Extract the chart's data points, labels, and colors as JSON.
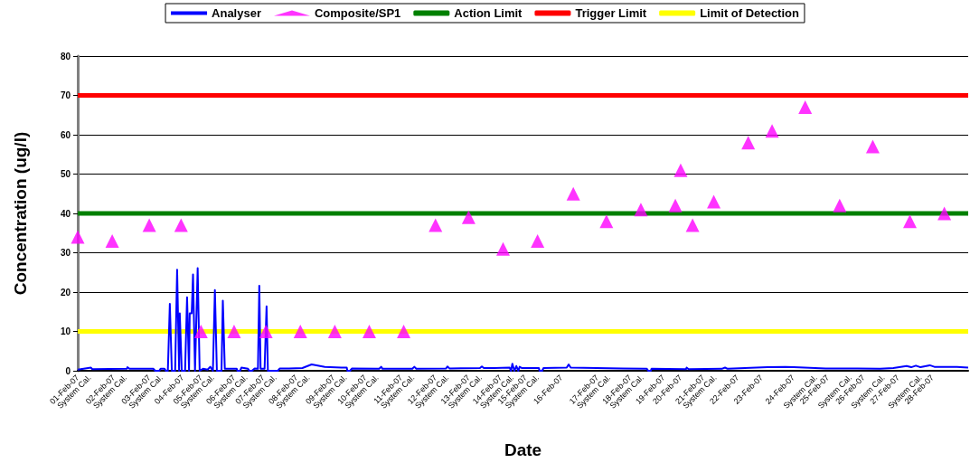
{
  "chart_data": {
    "type": "line",
    "xlabel": "Date",
    "ylabel": "Concentration (ug/l)",
    "legend": "top",
    "grid": "y",
    "xlim": [
      "--02-01T00:00",
      "--03-01T00:00"
    ],
    "ylim": [
      0,
      80
    ],
    "yticks": [
      0,
      10,
      20,
      30,
      40,
      50,
      60,
      70,
      80
    ],
    "xticks": [
      {
        "value": "--02-01T00:00",
        "label": "01-Feb-07"
      },
      {
        "value": "--02-01T09:00",
        "label": "System Cal."
      },
      {
        "value": "--02-02T03:00",
        "label": "02-Feb-07"
      },
      {
        "value": "--02-02T12:00",
        "label": "System Cal."
      },
      {
        "value": "--02-03T06:00",
        "label": "03-Feb-07"
      },
      {
        "value": "--02-03T15:00",
        "label": "System Cal."
      },
      {
        "value": "--02-04T07:00",
        "label": "04-Feb-07"
      },
      {
        "value": "--02-04T21:00",
        "label": "05-Feb-07"
      },
      {
        "value": "--02-05T06:00",
        "label": "System Cal."
      },
      {
        "value": "--02-05T22:00",
        "label": "06-Feb-07"
      },
      {
        "value": "--02-06T07:00",
        "label": "System Cal."
      },
      {
        "value": "--02-06T20:00",
        "label": "07-Feb-07"
      },
      {
        "value": "--02-07T05:00",
        "label": "System Cal."
      },
      {
        "value": "--02-07T21:00",
        "label": "08-Feb-07"
      },
      {
        "value": "--02-08T06:00",
        "label": "System Cal."
      },
      {
        "value": "--02-09T01:00",
        "label": "09-Feb-07"
      },
      {
        "value": "--02-09T10:00",
        "label": "System Cal."
      },
      {
        "value": "--02-10T01:00",
        "label": "10-Feb-07"
      },
      {
        "value": "--02-10T10:00",
        "label": "System Cal."
      },
      {
        "value": "--02-11T04:00",
        "label": "11-Feb-07"
      },
      {
        "value": "--02-11T13:00",
        "label": "System Cal."
      },
      {
        "value": "--02-12T06:00",
        "label": "12-Feb-07"
      },
      {
        "value": "--02-12T15:00",
        "label": "System Cal."
      },
      {
        "value": "--02-13T07:00",
        "label": "13-Feb-07"
      },
      {
        "value": "--02-13T16:00",
        "label": "System Cal."
      },
      {
        "value": "--02-14T07:00",
        "label": "14-Feb-07"
      },
      {
        "value": "--02-14T16:00",
        "label": "System Cal."
      },
      {
        "value": "--02-15T02:00",
        "label": "15-Feb-07"
      },
      {
        "value": "--02-15T11:00",
        "label": "System Cal."
      },
      {
        "value": "--02-16T05:00",
        "label": "16-Feb-07"
      },
      {
        "value": "--02-17T08:00",
        "label": "17-Feb-07"
      },
      {
        "value": "--02-17T17:00",
        "label": "System Cal."
      },
      {
        "value": "--02-18T09:00",
        "label": "18-Feb-07"
      },
      {
        "value": "--02-18T18:00",
        "label": "System Cal."
      },
      {
        "value": "--02-19T10:00",
        "label": "19-Feb-07"
      },
      {
        "value": "--02-19T23:00",
        "label": "20-Feb-07"
      },
      {
        "value": "--02-20T16:00",
        "label": "21-Feb-07"
      },
      {
        "value": "--02-21T01:00",
        "label": "System Cal."
      },
      {
        "value": "--02-21T18:00",
        "label": "22-Feb-07"
      },
      {
        "value": "--02-22T12:00",
        "label": "23-Feb-07"
      },
      {
        "value": "--02-23T12:00",
        "label": "24-Feb-07"
      },
      {
        "value": "--02-24T05:00",
        "label": "System Cal."
      },
      {
        "value": "--02-24T14:00",
        "label": "25-Feb-07"
      },
      {
        "value": "--02-25T07:00",
        "label": "System Cal."
      },
      {
        "value": "--02-25T17:00",
        "label": "26-Feb-07"
      },
      {
        "value": "--02-26T08:00",
        "label": "System Cal."
      },
      {
        "value": "--02-26T19:00",
        "label": "27-Feb-07"
      },
      {
        "value": "--02-27T12:00",
        "label": "System Cal."
      },
      {
        "value": "--02-27T21:00",
        "label": "28-Feb-07"
      }
    ],
    "series": [
      {
        "name": "Analyser",
        "color": "#0000ff",
        "marker": "none",
        "line_style": "solid",
        "x": [
          "--02-01T00:00",
          "--02-01T10:00",
          "--02-01T11:00",
          "--02-02T13:00",
          "--02-02T13:30",
          "--02-02T15:00",
          "--02-03T09:00",
          "--02-03T10:30",
          "--02-03T13:30",
          "--02-03T14:30",
          "--02-03T17:30",
          "--02-03T18:30",
          "--02-03T20:00",
          "--02-03T21:30",
          "--02-03T23:00",
          "--02-04T01:30",
          "--02-04T03:00",
          "--02-04T04:30",
          "--02-04T05:00",
          "--02-04T06:30",
          "--02-04T09:00",
          "--02-04T10:30",
          "--02-04T12:00",
          "--02-04T12:30",
          "--02-04T14:00",
          "--02-04T15:00",
          "--02-04T16:30",
          "--02-04T18:30",
          "--02-04T20:00",
          "--02-04T22:30",
          "--02-05T02:00",
          "--02-05T04:00",
          "--02-05T06:00",
          "--02-05T07:30",
          "--02-05T09:00",
          "--02-05T12:30",
          "--02-05T13:30",
          "--02-05T15:00",
          "--02-06T00:00",
          "--02-06T00:30",
          "--02-06T02:30",
          "--02-06T03:30",
          "--02-06T08:30",
          "--02-06T09:30",
          "--02-06T11:30",
          "--02-06T13:30",
          "--02-06T16:00",
          "--02-06T17:00",
          "--02-06T18:00",
          "--02-06T21:00",
          "--02-06T22:30",
          "--02-06T23:30",
          "--02-07T04:00",
          "--02-07T07:00",
          "--02-07T08:30",
          "--02-07T15:30",
          "--02-08T01:30",
          "--02-08T08:30",
          "--02-08T18:30",
          "--02-09T07:00",
          "--02-09T11:00",
          "--02-09T11:30",
          "--02-09T13:30",
          "--02-09T15:00",
          "--02-10T11:30",
          "--02-10T13:00",
          "--02-10T14:00",
          "--02-11T12:30",
          "--02-11T14:00",
          "--02-11T15:30",
          "--02-12T14:00",
          "--02-12T15:00",
          "--02-12T16:30",
          "--02-13T15:30",
          "--02-13T17:00",
          "--02-13T18:30",
          "--02-14T02:30",
          "--02-14T14:00",
          "--02-14T15:00",
          "--02-14T16:00",
          "--02-14T17:30",
          "--02-14T19:00",
          "--02-14T20:30",
          "--02-14T21:30",
          "--02-14T23:00",
          "--02-15T12:00",
          "--02-15T12:30",
          "--02-15T14:30",
          "--02-15T15:30",
          "--02-16T09:00",
          "--02-16T10:30",
          "--02-16T12:00",
          "--02-18T03:30",
          "--02-18T21:30",
          "--02-18T22:30",
          "--02-19T00:30",
          "--02-19T01:00",
          "--02-20T03:00",
          "--02-20T03:30",
          "--02-20T05:00",
          "--02-21T06:00",
          "--02-21T08:30",
          "--02-21T10:30",
          "--02-22T16:30",
          "--02-23T06:00",
          "--02-23T12:30",
          "--02-24T12:30",
          "--02-25T12:30",
          "--02-26T05:30",
          "--02-26T15:30",
          "--02-27T01:30",
          "--02-27T05:00",
          "--02-27T08:30",
          "--02-27T12:00",
          "--02-27T19:00",
          "--02-27T22:30",
          "--02-28T15:30",
          "--03-01T00:00"
        ],
        "values": [
          0.3,
          0.8,
          0.4,
          0.5,
          0.9,
          0.5,
          0.5,
          0,
          0,
          0.5,
          0.5,
          0,
          0,
          17,
          0,
          0,
          25.7,
          0,
          14.6,
          0,
          0,
          18.7,
          0,
          14.6,
          14.6,
          24.5,
          0,
          26.1,
          0,
          0.5,
          0.3,
          1,
          0,
          20.5,
          0,
          0,
          17.8,
          0.5,
          0.5,
          0,
          0,
          0.8,
          0.5,
          0,
          0,
          0.6,
          0.5,
          21.6,
          0.5,
          0.5,
          16.4,
          0,
          0,
          0,
          0.6,
          0.6,
          0.7,
          1.6,
          1,
          0.8,
          0.8,
          0,
          0,
          0.6,
          0.5,
          1,
          0.5,
          0.5,
          1,
          0.5,
          0.6,
          1.1,
          0.6,
          0.7,
          1.1,
          0.7,
          0.7,
          0.8,
          0,
          1.8,
          0,
          1.2,
          0,
          1,
          0.7,
          0.7,
          0,
          0,
          0.7,
          0.8,
          1.6,
          0.8,
          0.6,
          0.5,
          0,
          0,
          0.5,
          0.4,
          0.8,
          0.4,
          0.5,
          0.8,
          0.5,
          0.9,
          1,
          0.9,
          0.6,
          0.6,
          0.5,
          0.7,
          1.2,
          0.9,
          1.3,
          0.9,
          1.4,
          1,
          1,
          0.8
        ]
      },
      {
        "name": "Composite/SP1",
        "type": "scatter",
        "color": "#ff00ff",
        "marker": "triangle",
        "x": [
          "--02-01T00:00",
          "--02-02T02:00",
          "--02-03T06:00",
          "--02-04T06:00",
          "--02-04T21:00",
          "--02-05T22:00",
          "--02-06T22:00",
          "--02-08T00:00",
          "--02-09T02:00",
          "--02-10T04:00",
          "--02-11T06:00",
          "--02-12T06:00",
          "--02-13T07:00",
          "--02-14T09:00",
          "--02-15T11:00",
          "--02-16T14:00",
          "--02-17T15:00",
          "--02-18T17:00",
          "--02-19T19:00",
          "--02-19T23:00",
          "--02-20T08:00",
          "--02-21T00:00",
          "--02-22T02:00",
          "--02-22T20:00",
          "--02-23T21:00",
          "--02-24T23:00",
          "--02-26T00:00",
          "--02-27T04:00",
          "--02-28T06:00"
        ],
        "values": [
          34,
          33,
          37,
          37,
          10,
          10,
          10,
          10,
          10,
          10,
          10,
          37,
          39,
          31,
          33,
          45,
          38,
          41,
          42,
          51,
          37,
          43,
          58,
          61,
          67,
          42,
          57,
          38,
          40
        ]
      }
    ],
    "ref_lines": [
      {
        "axis": "y",
        "value": 40,
        "label": "Action Limit",
        "color": "#008000"
      },
      {
        "axis": "y",
        "value": 70,
        "label": "Trigger Limit",
        "color": "#ff0000"
      },
      {
        "axis": "y",
        "value": 10,
        "label": "Limit of Detection",
        "color": "#ffff00"
      }
    ]
  }
}
